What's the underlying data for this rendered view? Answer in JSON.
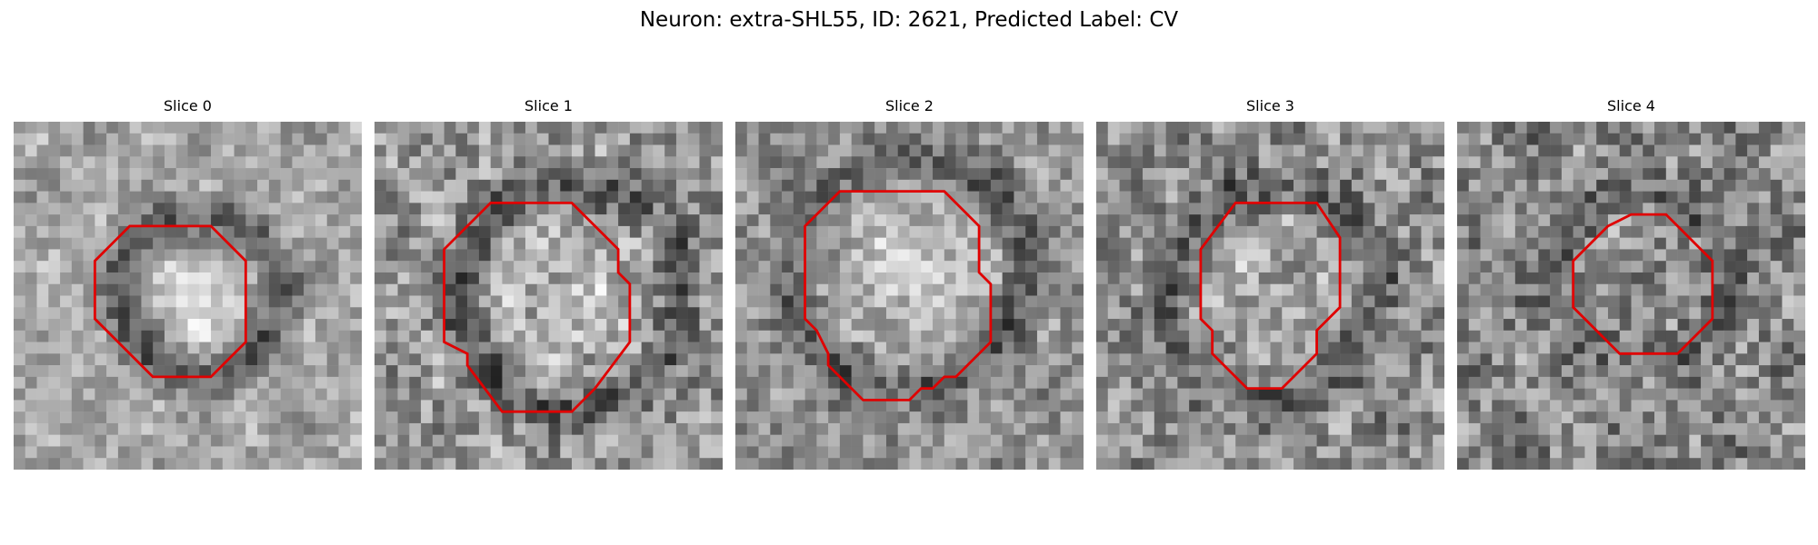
{
  "figure": {
    "title": "Neuron: extra-SHL55, ID: 2621, Predicted Label: CV"
  },
  "colors": {
    "contour": "#e00000",
    "background": "#ffffff"
  },
  "slices": [
    {
      "label": "Slice 0"
    },
    {
      "label": "Slice 1"
    },
    {
      "label": "Slice 2"
    },
    {
      "label": "Slice 3"
    },
    {
      "label": "Slice 4"
    }
  ]
}
